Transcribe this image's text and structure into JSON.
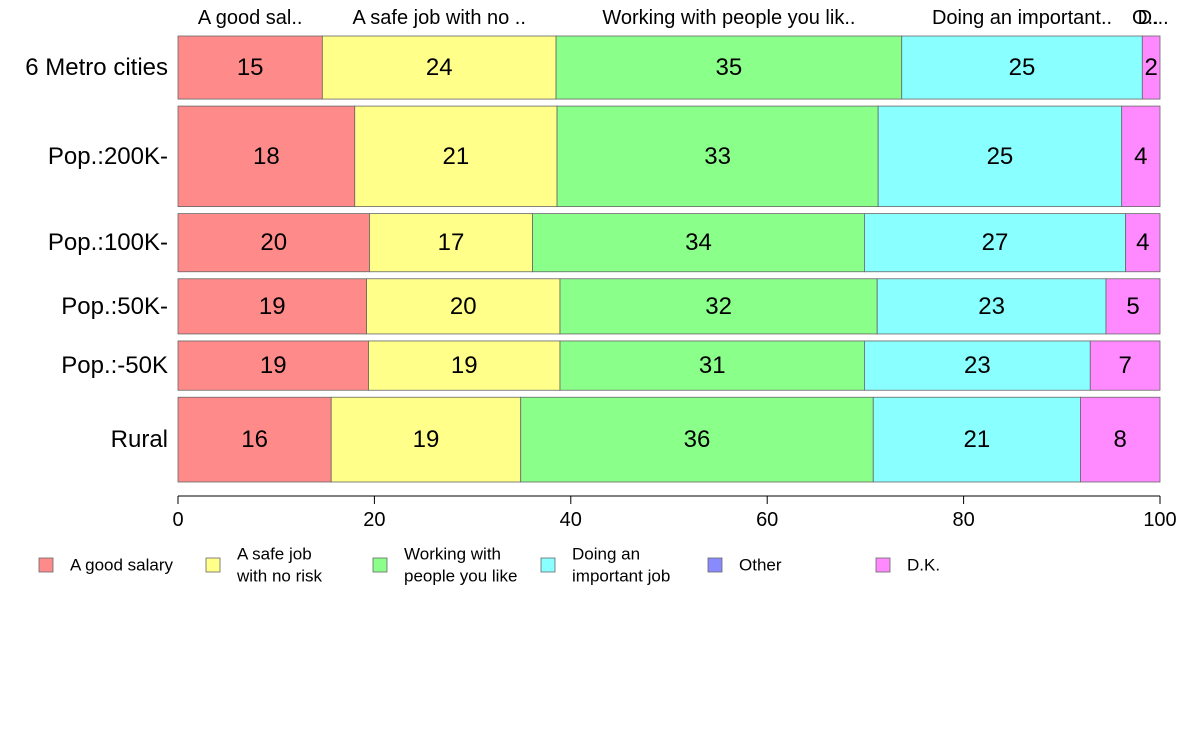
{
  "chart_data": {
    "type": "bar",
    "orientation": "horizontal",
    "stacked": true,
    "title": "",
    "xlabel": "",
    "ylabel": "",
    "xlim": [
      0,
      100
    ],
    "x_ticks": [
      "0",
      "20",
      "40",
      "60",
      "80",
      "100"
    ],
    "grid": false,
    "legend_position": "bottom",
    "categories": [
      "6 Metro cities",
      "Pop.:200K-",
      "Pop.:100K-",
      "Pop.:50K-",
      "Pop.:-50K",
      "Rural"
    ],
    "top_labels": [
      "A good sal..",
      "A safe job with no ..",
      "Working with people you lik..",
      "Doing an important..",
      "O..",
      "D..."
    ],
    "series": [
      {
        "name": "A good salary",
        "legend_lines": [
          "A good salary"
        ],
        "color": "#FF8A8A",
        "values": [
          15,
          18,
          20,
          19,
          19,
          16
        ]
      },
      {
        "name": "A safe job with no risk",
        "legend_lines": [
          "A safe job",
          "with no risk"
        ],
        "color": "#FFFF8A",
        "values": [
          24,
          21,
          17,
          20,
          19,
          19
        ]
      },
      {
        "name": "Working with people you like",
        "legend_lines": [
          "Working with",
          "people you like"
        ],
        "color": "#8AFF8A",
        "values": [
          35,
          33,
          34,
          32,
          31,
          36
        ]
      },
      {
        "name": "Doing an important job",
        "legend_lines": [
          "Doing an",
          "important job"
        ],
        "color": "#8AFFFF",
        "values": [
          25,
          25,
          27,
          23,
          23,
          21
        ]
      },
      {
        "name": "Other",
        "legend_lines": [
          "Other"
        ],
        "color": "#8A8AFF",
        "values": [
          0,
          0,
          0,
          0,
          0,
          0
        ]
      },
      {
        "name": "D.K.",
        "legend_lines": [
          "D.K."
        ],
        "color": "#FF8AFF",
        "values": [
          2,
          4,
          4,
          5,
          7,
          8
        ]
      }
    ],
    "bar_shares": [
      [
        14.7,
        23.8,
        35.2,
        24.5,
        0,
        1.8
      ],
      [
        18.0,
        20.6,
        32.7,
        24.8,
        0,
        3.9
      ],
      [
        19.5,
        16.6,
        33.8,
        26.6,
        0,
        3.5
      ],
      [
        19.2,
        19.7,
        32.3,
        23.3,
        0,
        5.5
      ],
      [
        19.4,
        19.5,
        31.0,
        23.0,
        0,
        7.1
      ],
      [
        15.6,
        19.3,
        35.9,
        21.1,
        0,
        8.1
      ]
    ],
    "row_weights": [
      0.128,
      0.204,
      0.118,
      0.112,
      0.1,
      0.172
    ]
  }
}
